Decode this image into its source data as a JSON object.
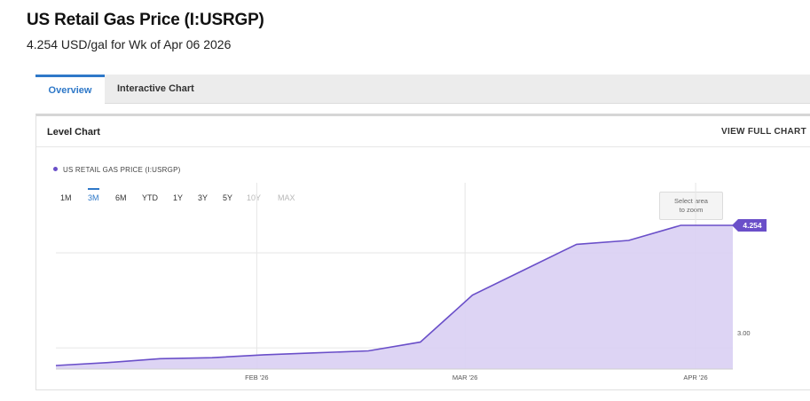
{
  "header": {
    "title": "US Retail Gas Price (I:USRGP)",
    "subtitle": "4.254 USD/gal for Wk of Apr 06 2026"
  },
  "tabs": [
    {
      "label": "Overview",
      "active": true
    },
    {
      "label": "Interactive Chart",
      "active": false
    }
  ],
  "panel": {
    "title": "Level Chart",
    "view_full_label": "VIEW FULL CHART"
  },
  "legend_label": "US RETAIL GAS PRICE (I:USRGP)",
  "ranges": [
    {
      "label": "1M",
      "state": "normal"
    },
    {
      "label": "3M",
      "state": "active"
    },
    {
      "label": "6M",
      "state": "normal"
    },
    {
      "label": "YTD",
      "state": "normal"
    },
    {
      "label": "1Y",
      "state": "normal"
    },
    {
      "label": "3Y",
      "state": "normal"
    },
    {
      "label": "5Y",
      "state": "normal"
    },
    {
      "label": "10Y",
      "state": "disabled"
    },
    {
      "label": "MAX",
      "state": "disabled"
    }
  ],
  "zoom_hint": {
    "line1": "Select area",
    "line2": "to zoom"
  },
  "colors": {
    "series": "#6a4fc9",
    "fill": "#d9cff3",
    "accent": "#2e78c8"
  },
  "chart_data": {
    "type": "area",
    "title": "",
    "series": [
      {
        "name": "US RETAIL GAS PRICE (I:USRGP)",
        "x": [
          "2026-01-05",
          "2026-01-12",
          "2026-01-19",
          "2026-01-26",
          "2026-02-02",
          "2026-02-09",
          "2026-02-16",
          "2026-02-23",
          "2026-03-02",
          "2026-03-09",
          "2026-03-16",
          "2026-03-23",
          "2026-03-30",
          "2026-04-06"
        ],
        "y": [
          2.82,
          2.85,
          2.89,
          2.9,
          2.93,
          2.95,
          2.97,
          3.06,
          3.54,
          3.8,
          4.06,
          4.1,
          4.254,
          4.254
        ]
      }
    ],
    "x_ticks": [
      {
        "label": "FEB '26",
        "x": "2026-02-01"
      },
      {
        "label": "MAR '26",
        "x": "2026-03-01"
      },
      {
        "label": "APR '26",
        "x": "2026-04-01"
      }
    ],
    "y_ticks": [
      {
        "label": "3.00",
        "y": 3.0
      }
    ],
    "last_value_label": "4.254",
    "ylim": [
      2.82,
      4.254
    ],
    "grid": true,
    "legend_position": "top-left"
  }
}
